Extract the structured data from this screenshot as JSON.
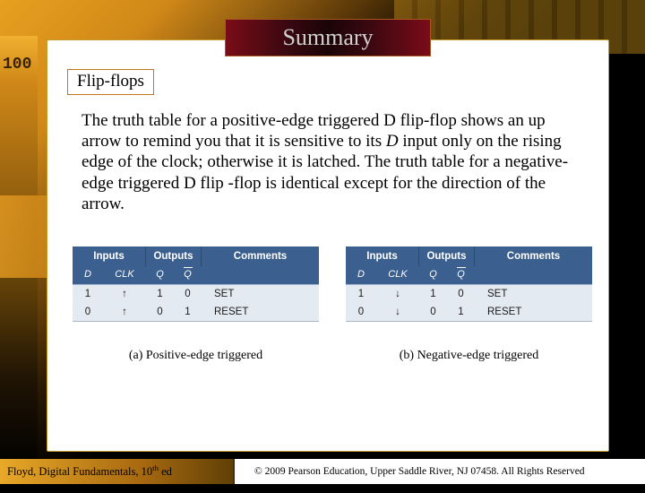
{
  "title": "Summary",
  "subtitle": "Flip-flops",
  "body": {
    "pre_italic": "The truth table for a positive-edge triggered D flip-flop shows an up arrow to remind you that it is sensitive to its ",
    "italic": "D",
    "post_italic": " input only on the rising edge of the clock; otherwise it is latched. The truth table for a negative-edge triggered D flip -flop is identical except for the direction of the arrow."
  },
  "tables": {
    "header_inputs": "Inputs",
    "header_outputs": "Outputs",
    "header_comments": "Comments",
    "sub_d": "D",
    "sub_clk": "CLK",
    "sub_q": "Q",
    "sub_qbar": "Q",
    "left": {
      "edge_class": "arrow-up",
      "row1": {
        "d": "1",
        "q": "1",
        "qb": "0",
        "c": "SET"
      },
      "row2": {
        "d": "0",
        "q": "0",
        "qb": "1",
        "c": "RESET"
      },
      "caption": "(a) Positive-edge triggered"
    },
    "right": {
      "edge_class": "arrow-down",
      "row1": {
        "d": "1",
        "q": "1",
        "qb": "0",
        "c": "SET"
      },
      "row2": {
        "d": "0",
        "q": "0",
        "qb": "1",
        "c": "RESET"
      },
      "caption": "(b) Negative-edge triggered"
    }
  },
  "footer": {
    "left_pre": "Floyd, Digital Fundamentals, 10",
    "left_sup": "th",
    "left_post": " ed",
    "right": "© 2009 Pearson Education, Upper Saddle River, NJ 07458. All Rights Reserved"
  },
  "colors": {
    "table_header_bg": "#3b5f8f",
    "table_body_bg": "#e4eaf2",
    "content_border": "#c49a2a"
  }
}
